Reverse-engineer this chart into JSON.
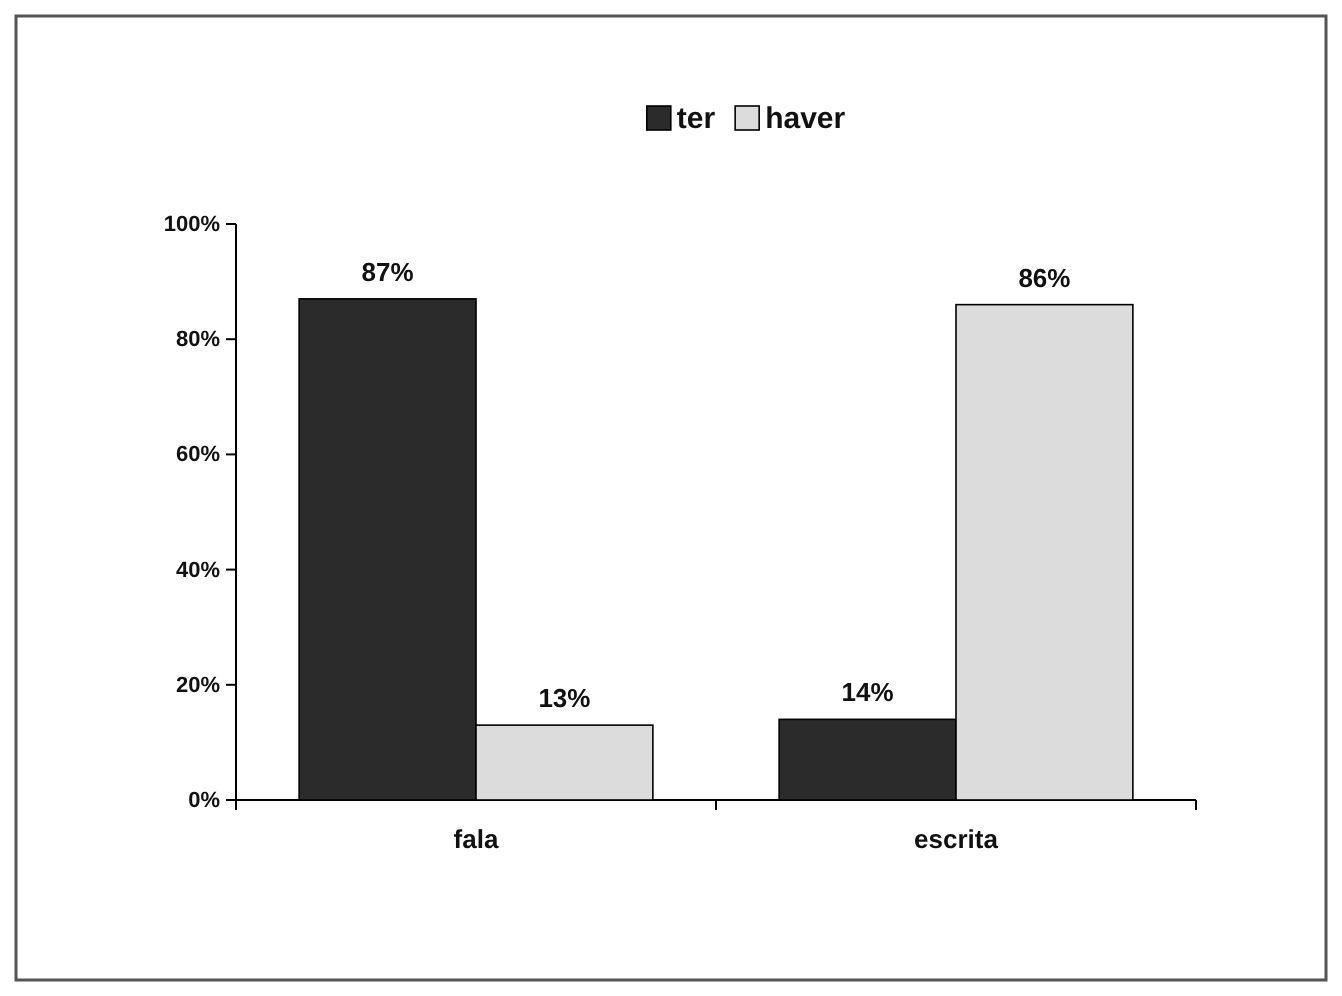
{
  "chart_data": {
    "type": "bar",
    "categories": [
      "fala",
      "escrita"
    ],
    "series": [
      {
        "name": "ter",
        "color": "#2b2b2b",
        "values": [
          87,
          14
        ],
        "value_labels": [
          "87%",
          "14%"
        ]
      },
      {
        "name": "haver",
        "color": "#dcdcdc",
        "values": [
          13,
          86
        ],
        "value_labels": [
          "13%",
          "86%"
        ]
      }
    ],
    "ylim": [
      0,
      100
    ],
    "yticks": [
      {
        "value": 0,
        "label": "0%"
      },
      {
        "value": 20,
        "label": "20%"
      },
      {
        "value": 40,
        "label": "40%"
      },
      {
        "value": 60,
        "label": "60%"
      },
      {
        "value": 80,
        "label": "80%"
      },
      {
        "value": 100,
        "label": "100%"
      }
    ],
    "grid": false,
    "legend": "top"
  }
}
